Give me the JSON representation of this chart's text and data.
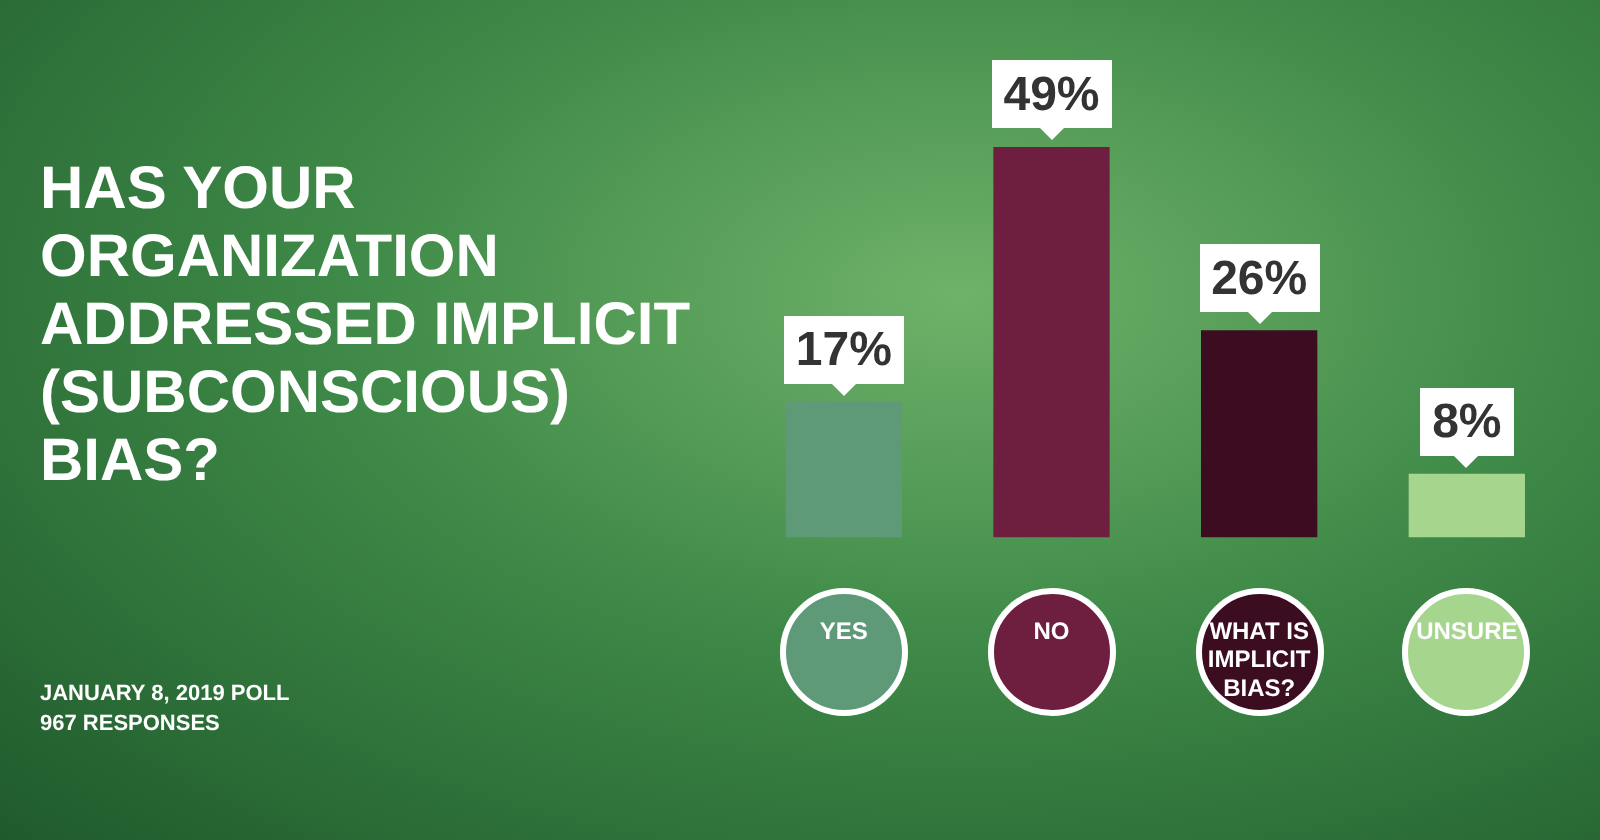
{
  "chart_data": {
    "type": "bar",
    "title": "HAS YOUR ORGANIZATION ADDRESSED IMPLICIT (SUBCONSCIOUS) BIAS?",
    "categories": [
      "YES",
      "NO",
      "WHAT IS IMPLICIT BIAS?",
      "UNSURE"
    ],
    "values": [
      17,
      49,
      26,
      8
    ],
    "colors": [
      "#5e9a78",
      "#6e1f40",
      "#3c0c20",
      "#a6d58e"
    ],
    "value_labels": [
      "17%",
      "49%",
      "26%",
      "8%"
    ],
    "grid": false,
    "legend": false,
    "annotations": [
      "JANUARY 8, 2019 POLL",
      "967 RESPONSES"
    ]
  }
}
